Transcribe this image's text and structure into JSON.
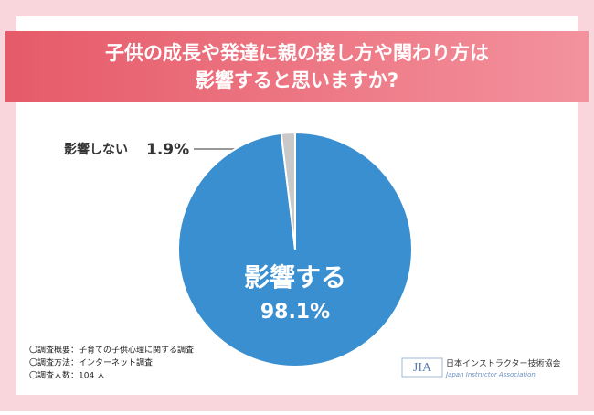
{
  "chart_data": {
    "type": "pie",
    "title": [
      "子供の成長や発達に親の接し方や関わり方は",
      "影響すると思いますか?"
    ],
    "categories": [
      "影響する",
      "影響しない"
    ],
    "values": [
      98.1,
      1.9
    ],
    "value_labels": [
      "98.1%",
      "1.9%"
    ],
    "colors": [
      "#3a8fd0",
      "#c9c9c9"
    ],
    "notes": [
      "〇調査概要：子育ての子供心理に関する調査",
      "〇調査方法：インターネット調査",
      "〇調査人数：104 人"
    ],
    "logo": {
      "mark": "JIA",
      "name": "日本インストラクター技術協会",
      "english": "Japan Instructor Association"
    }
  }
}
